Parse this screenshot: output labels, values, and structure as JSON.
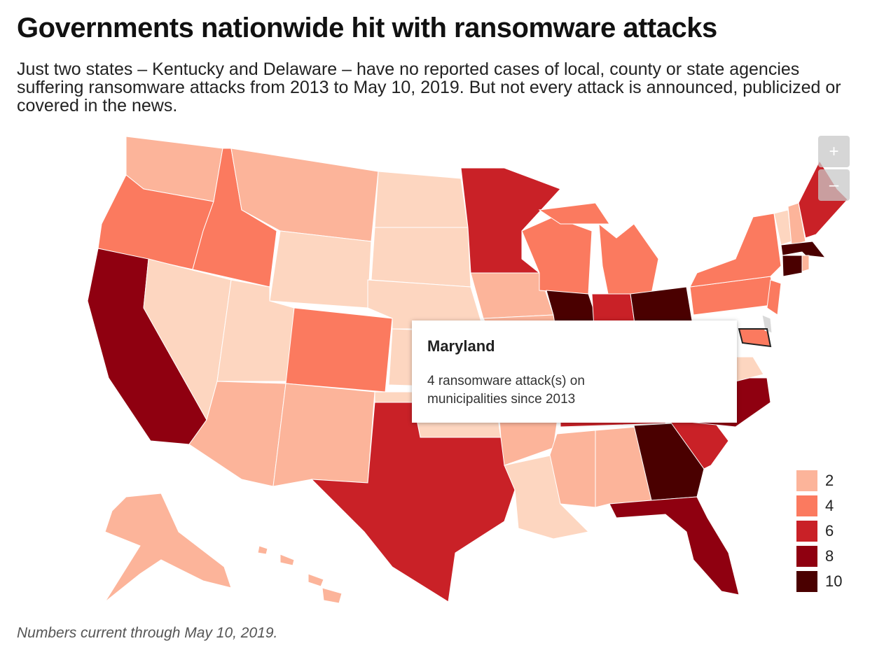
{
  "title": "Governments nationwide hit with ransomware attacks",
  "subtitle": "Just two states – Kentucky and Delaware – have no reported cases of local, county or state agencies suffering ransomware attacks from 2013 to May 10, 2019. But not every attack is announced, publicized or covered in the news.",
  "zoom": {
    "in": "+",
    "out": "–"
  },
  "tooltip": {
    "title": "Maryland",
    "text": "4 ransomware attack(s) on municipalities since 2013"
  },
  "legend": [
    {
      "value": 2,
      "color": "#fcb49a"
    },
    {
      "value": 4,
      "color": "#fb7a5f"
    },
    {
      "value": 6,
      "color": "#c92127"
    },
    {
      "value": 8,
      "color": "#8f0010"
    },
    {
      "value": 10,
      "color": "#4a0000"
    }
  ],
  "footnote": "Numbers current through May 10, 2019."
}
